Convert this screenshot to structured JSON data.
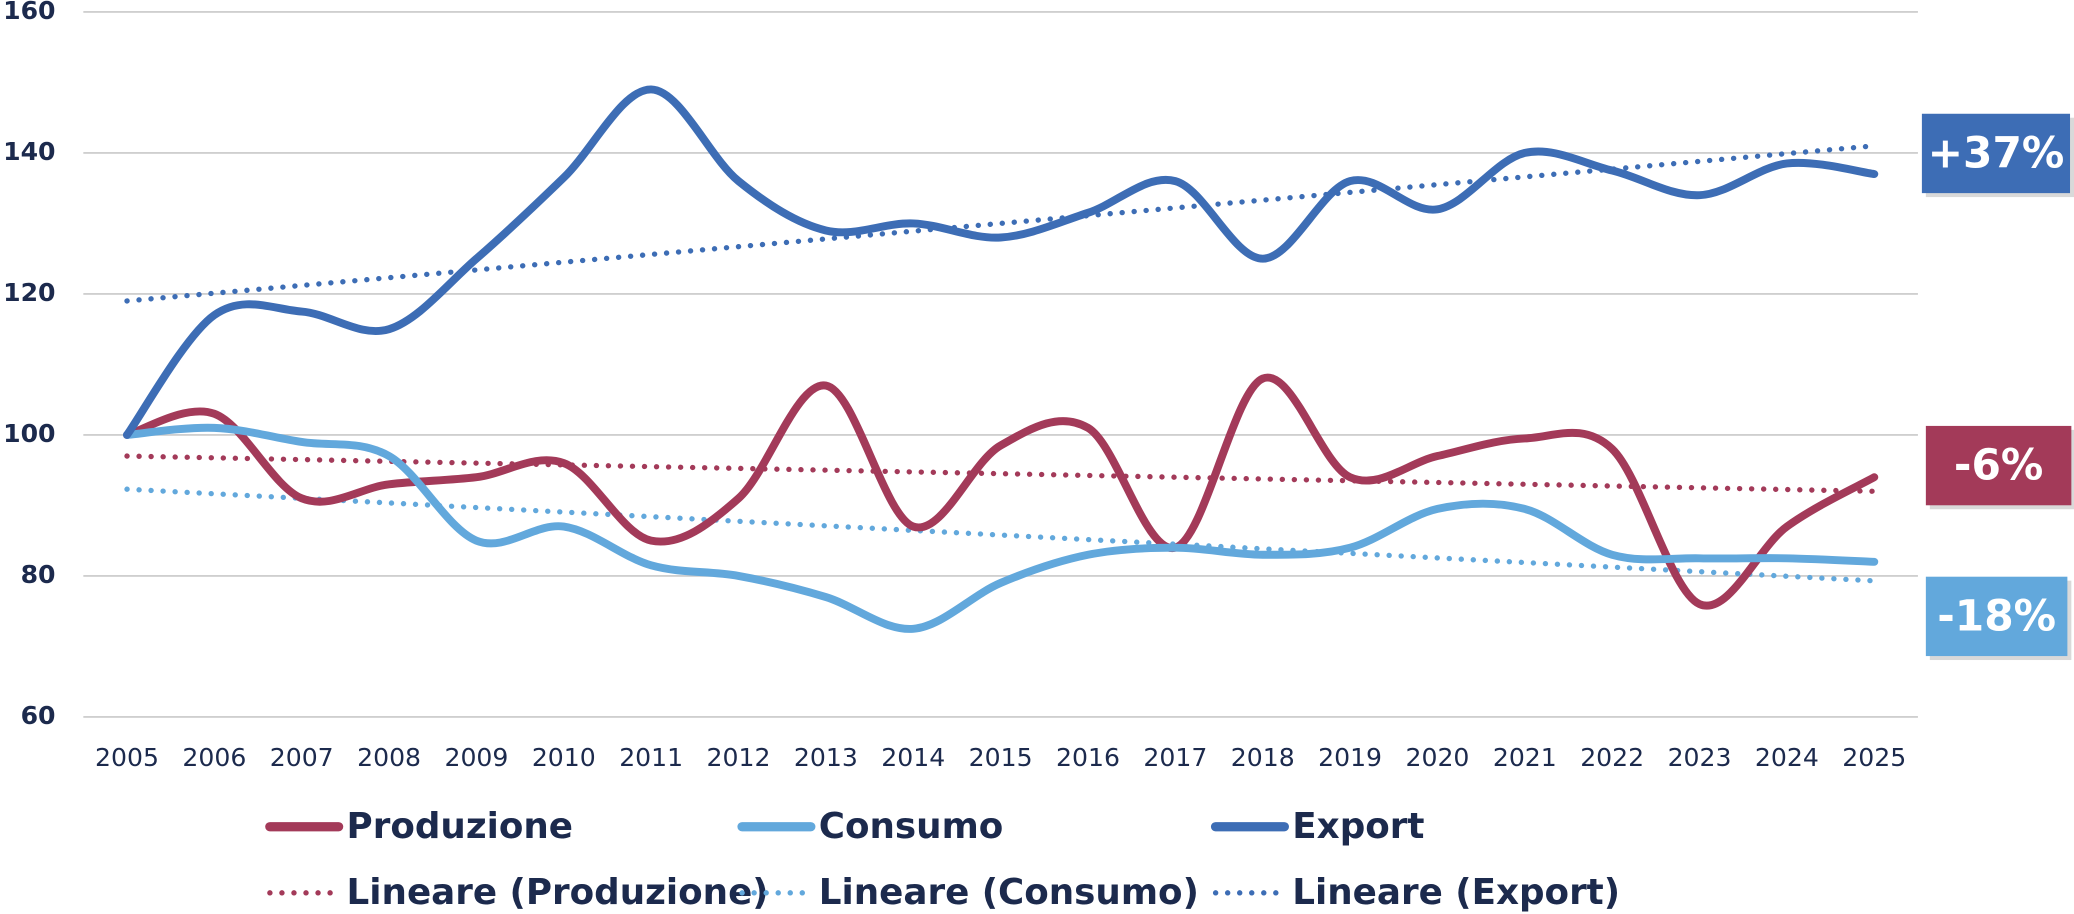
{
  "chart_data": {
    "type": "line",
    "x": [
      2005,
      2006,
      2007,
      2008,
      2009,
      2010,
      2011,
      2012,
      2013,
      2014,
      2015,
      2016,
      2017,
      2018,
      2019,
      2020,
      2021,
      2022,
      2023,
      2024,
      2025
    ],
    "ylim": [
      60,
      160
    ],
    "yticks": [
      60,
      80,
      100,
      120,
      140,
      160
    ],
    "grid": true,
    "series": [
      {
        "name": "Produzione",
        "color": "#a33a59",
        "style": "solid",
        "values": [
          100,
          103,
          91,
          93,
          94,
          96,
          85,
          91,
          107,
          87,
          98.5,
          101,
          84,
          108,
          94,
          97,
          99.5,
          98,
          76,
          87,
          94
        ]
      },
      {
        "name": "Consumo",
        "color": "#62a8dc",
        "style": "solid",
        "values": [
          100,
          101,
          99,
          97,
          85,
          87,
          81.5,
          80,
          77,
          72.5,
          79,
          83,
          84,
          83,
          84,
          89.5,
          89.5,
          83,
          82.5,
          82.5,
          82
        ]
      },
      {
        "name": "Export",
        "color": "#3d6db5",
        "style": "solid",
        "values": [
          100,
          117,
          117.5,
          115,
          125,
          136.5,
          149,
          136,
          129,
          130,
          128,
          131.5,
          136,
          125,
          136,
          132,
          140,
          137.5,
          134,
          138.5,
          137
        ]
      },
      {
        "name": "Lineare (Produzione)",
        "color": "#a33a59",
        "style": "dotted",
        "values": [
          97,
          96.75,
          96.5,
          96.25,
          96,
          95.75,
          95.5,
          95.25,
          95,
          94.75,
          94.5,
          94.25,
          94,
          93.75,
          93.5,
          93.25,
          93,
          92.75,
          92.5,
          92.25,
          92
        ]
      },
      {
        "name": "Lineare (Consumo)",
        "color": "#62a8dc",
        "style": "dotted",
        "values": [
          92.3,
          91.65,
          91,
          90.35,
          89.7,
          89.05,
          88.4,
          87.75,
          87.1,
          86.45,
          85.8,
          85.15,
          84.5,
          83.85,
          83.2,
          82.55,
          81.9,
          81.25,
          80.6,
          79.95,
          79.3
        ]
      },
      {
        "name": "Lineare (Export)",
        "color": "#3d6db5",
        "style": "dotted",
        "values": [
          119,
          120.1,
          121.2,
          122.3,
          123.4,
          124.5,
          125.6,
          126.7,
          127.8,
          128.9,
          130,
          131.1,
          132.2,
          133.3,
          134.4,
          135.5,
          136.6,
          137.7,
          138.8,
          139.9,
          141
        ]
      }
    ],
    "annotations": [
      {
        "text": "+37%",
        "color": "#3d6db5"
      },
      {
        "text": "-6%",
        "color": "#a33a59"
      },
      {
        "text": "-18%",
        "color": "#62a8dc"
      }
    ]
  }
}
